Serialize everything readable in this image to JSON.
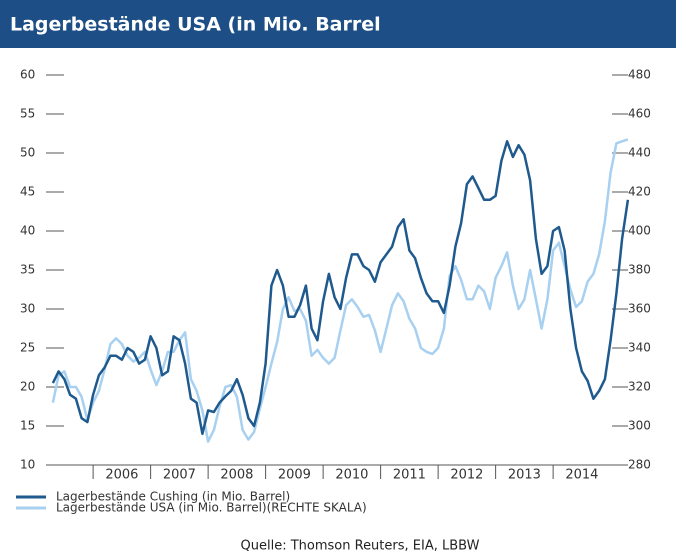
{
  "chart_data": {
    "type": "line",
    "title": "Lagerbestände USA (in Mio. Barrel",
    "source": "Quelle: Thomson Reuters, EIA, LBBW",
    "x": [
      2005.3,
      2005.4,
      2005.5,
      2005.6,
      2005.7,
      2005.8,
      2005.9,
      2006.0,
      2006.1,
      2006.2,
      2006.3,
      2006.4,
      2006.5,
      2006.6,
      2006.7,
      2006.8,
      2006.9,
      2007.0,
      2007.1,
      2007.2,
      2007.3,
      2007.4,
      2007.5,
      2007.6,
      2007.7,
      2007.8,
      2007.9,
      2008.0,
      2008.1,
      2008.2,
      2008.3,
      2008.4,
      2008.5,
      2008.6,
      2008.7,
      2008.8,
      2008.9,
      2009.0,
      2009.1,
      2009.2,
      2009.3,
      2009.4,
      2009.5,
      2009.6,
      2009.7,
      2009.8,
      2009.9,
      2010.0,
      2010.1,
      2010.2,
      2010.3,
      2010.4,
      2010.5,
      2010.6,
      2010.7,
      2010.8,
      2010.9,
      2011.0,
      2011.1,
      2011.2,
      2011.3,
      2011.4,
      2011.5,
      2011.6,
      2011.7,
      2011.8,
      2011.9,
      2012.0,
      2012.1,
      2012.2,
      2012.3,
      2012.4,
      2012.5,
      2012.6,
      2012.7,
      2012.8,
      2012.9,
      2013.0,
      2013.1,
      2013.2,
      2013.3,
      2013.4,
      2013.5,
      2013.6,
      2013.7,
      2013.8,
      2013.9,
      2014.0,
      2014.1,
      2014.2,
      2014.3,
      2014.4,
      2014.5,
      2014.6,
      2014.7,
      2014.8,
      2014.9,
      2015.0,
      2015.1,
      2015.2,
      2015.3
    ],
    "series": [
      {
        "name": "Lagerbestände Cushing (in Mio. Barrel)",
        "color": "#1f5a8e",
        "values": [
          20.5,
          22,
          21,
          19,
          18.5,
          16,
          15.5,
          19,
          21.5,
          22.5,
          24,
          24,
          23.5,
          25,
          24.5,
          23,
          23.5,
          26.5,
          25,
          21.5,
          22,
          26.5,
          26,
          23,
          18.5,
          18,
          14,
          17,
          16.8,
          18,
          18.8,
          19.5,
          21,
          19,
          16,
          15,
          18,
          23,
          33,
          35,
          33,
          29,
          29,
          30.5,
          33,
          27.5,
          26,
          31,
          34.5,
          31.5,
          30,
          34,
          37,
          37,
          35.5,
          35,
          33.5,
          36,
          37,
          38,
          40.5,
          41.5,
          37.5,
          36.5,
          34,
          32,
          31,
          31,
          29.5,
          33,
          38,
          41,
          46,
          47,
          45.5,
          44,
          44,
          44.5,
          49,
          51.5,
          49.5,
          51,
          49.8,
          46.5,
          39,
          34.5,
          35.5,
          40,
          40.5,
          37.5,
          30,
          25,
          22,
          20.8,
          18.5,
          19.5,
          21,
          26,
          32,
          39,
          44
        ]
      },
      {
        "name": "Lagerbestände USA (in Mio. Barrel)(RECHTE SKALA)",
        "color": "#a8d0f0",
        "axis": "y2",
        "values": [
          312,
          326,
          328,
          320,
          320,
          315,
          303,
          312,
          318,
          329,
          342,
          345,
          342,
          336,
          333,
          335,
          338,
          329,
          321,
          328,
          338,
          338,
          344,
          348,
          324,
          318,
          308,
          292,
          298,
          310,
          320,
          321,
          315,
          298,
          293,
          297,
          309,
          320,
          332,
          343,
          360,
          366,
          359,
          360,
          354,
          336,
          339,
          335,
          332,
          335,
          349,
          362,
          365,
          361,
          356,
          357,
          349,
          338,
          350,
          362,
          368,
          364,
          355,
          350,
          340,
          338,
          337,
          340,
          350,
          377,
          382,
          375,
          365,
          365,
          372,
          369,
          360,
          376,
          382,
          389,
          372,
          360,
          365,
          380,
          365,
          350,
          365,
          390,
          394,
          382,
          370,
          361,
          364,
          374,
          378,
          388,
          405,
          430,
          445,
          446,
          447
        ]
      }
    ],
    "xlim": [
      2005.25,
      2015.35
    ],
    "xticks": [
      {
        "value": 2006,
        "label": "2006"
      },
      {
        "value": 2007,
        "label": "2007"
      },
      {
        "value": 2008,
        "label": "2008"
      },
      {
        "value": 2009,
        "label": "2009"
      },
      {
        "value": 2010,
        "label": "2010"
      },
      {
        "value": 2011,
        "label": "2011"
      },
      {
        "value": 2012,
        "label": "2012"
      },
      {
        "value": 2013,
        "label": "2013"
      },
      {
        "value": 2014,
        "label": "2014"
      }
    ],
    "ylim": [
      10,
      60
    ],
    "yticks": [
      10,
      15,
      20,
      25,
      30,
      35,
      40,
      45,
      50,
      55,
      60
    ],
    "y2lim": [
      280,
      480
    ],
    "y2ticks": [
      280,
      300,
      320,
      340,
      360,
      380,
      400,
      420,
      440,
      460,
      480
    ]
  }
}
